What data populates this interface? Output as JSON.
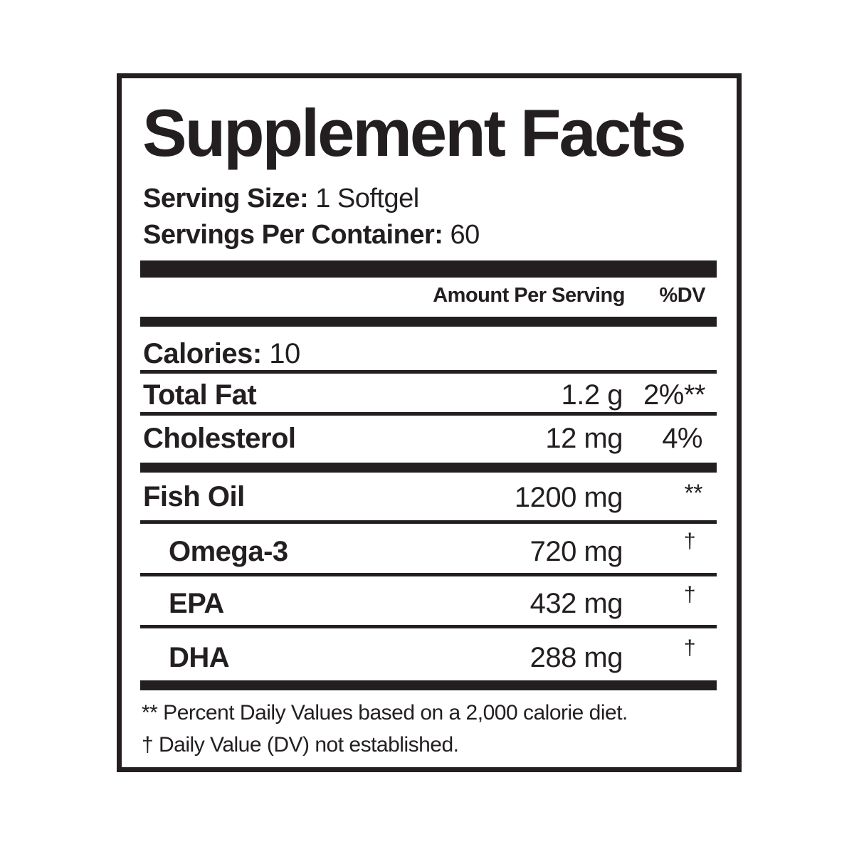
{
  "title": "Supplement Facts",
  "serving_size": {
    "label": "Serving Size:",
    "value": "1 Softgel"
  },
  "servings_per_container": {
    "label": "Servings Per Container:",
    "value": "60"
  },
  "columns": {
    "amount": "Amount Per Serving",
    "dv": "%DV"
  },
  "calories": {
    "label": "Calories:",
    "value": "10"
  },
  "rows": [
    {
      "name": "Total Fat",
      "amount": "1.2 g",
      "dv": "2%**"
    },
    {
      "name": "Cholesterol",
      "amount": "12 mg",
      "dv": "4%"
    },
    {
      "name": "Fish Oil",
      "amount": "1200 mg",
      "dv": "**"
    },
    {
      "name": "Omega-3",
      "amount": "720 mg",
      "dv": "†"
    },
    {
      "name": "EPA",
      "amount": "432 mg",
      "dv": "†"
    },
    {
      "name": "DHA",
      "amount": "288 mg",
      "dv": "†"
    }
  ],
  "footnotes": [
    "** Percent Daily Values based on a 2,000 calorie diet.",
    "† Daily Value (DV) not established."
  ]
}
